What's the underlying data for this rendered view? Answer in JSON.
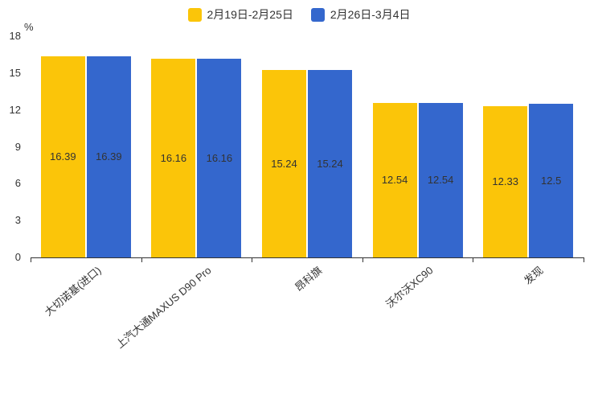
{
  "chart_data": {
    "type": "bar",
    "title": "",
    "unit": "%",
    "categories": [
      "大切诺基(进口)",
      "上汽大通MAXUS D90 Pro",
      "昂科旗",
      "沃尔沃XC90",
      "发现"
    ],
    "series": [
      {
        "name": "2月19日-2月25日",
        "color": "#FBC509",
        "values": [
          16.39,
          16.16,
          15.24,
          12.54,
          12.33
        ]
      },
      {
        "name": "2月26日-3月4日",
        "color": "#3467CD",
        "values": [
          16.39,
          16.16,
          15.24,
          12.54,
          12.5
        ]
      }
    ],
    "ylim": [
      0,
      18
    ],
    "yticks": [
      0,
      3,
      6,
      9,
      12,
      15,
      18
    ],
    "legend_position": "top",
    "grid": false,
    "axis_color": "#333333",
    "label_color": "#333333"
  }
}
